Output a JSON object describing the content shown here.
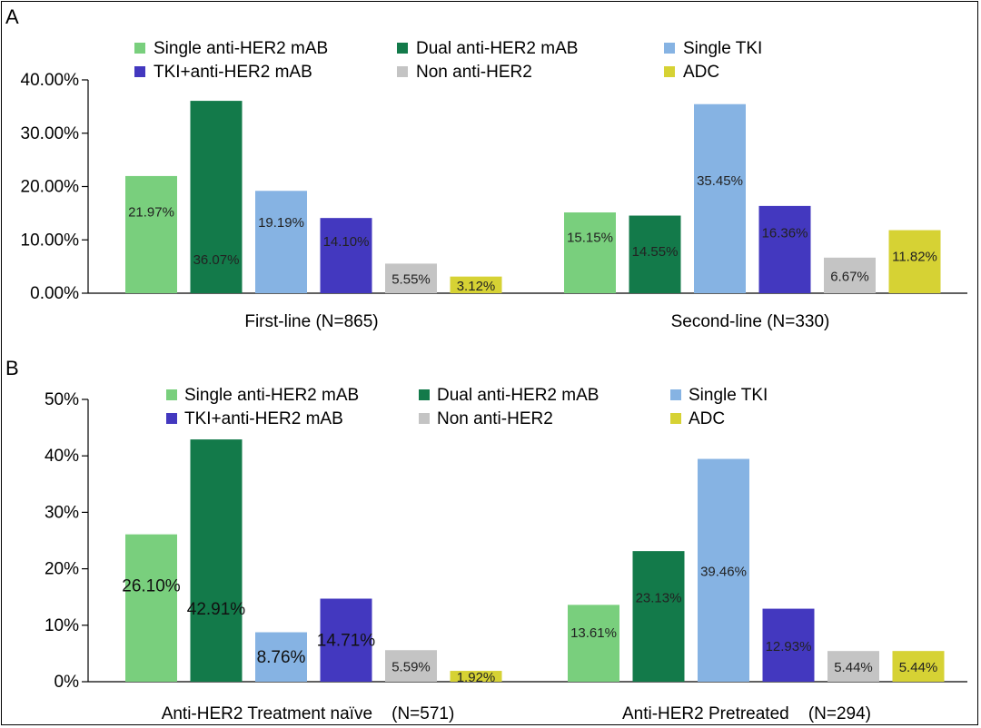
{
  "colors": {
    "Single anti-HER2 mAB": "#79cf7d",
    "Dual anti-HER2 mAB": "#137a4a",
    "Single TKI": "#86b3e3",
    "TKI+anti-HER2 mAB": "#4338bf",
    "Non anti-HER2": "#c4c4c4",
    "ADC": "#d6d234",
    "axis": "#000000"
  },
  "chart_data": [
    {
      "panel": "A",
      "type": "bar",
      "title": "",
      "xlabel": "",
      "ylabel": "",
      "ylim": [
        0,
        40
      ],
      "yticks": [
        "0.00%",
        "10.00%",
        "20.00%",
        "30.00%",
        "40.00%"
      ],
      "categories": [
        "First-line (N=865)",
        "Second-line (N=330)"
      ],
      "legend": [
        "Single anti-HER2 mAB",
        "Dual anti-HER2 mAB",
        "Single TKI",
        "TKI+anti-HER2 mAB",
        "Non anti-HER2",
        "ADC"
      ],
      "series": [
        {
          "name": "Single anti-HER2 mAB",
          "values": [
            21.97,
            15.15
          ],
          "labels": [
            "21.97%",
            "15.15%"
          ]
        },
        {
          "name": "Dual anti-HER2 mAB",
          "values": [
            36.07,
            14.55
          ],
          "labels": [
            "36.07%",
            "14.55%"
          ]
        },
        {
          "name": "Single TKI",
          "values": [
            19.19,
            35.45
          ],
          "labels": [
            "19.19%",
            "35.45%"
          ]
        },
        {
          "name": "TKI+anti-HER2 mAB",
          "values": [
            14.1,
            16.36
          ],
          "labels": [
            "14.10%",
            "16.36%"
          ]
        },
        {
          "name": "Non anti-HER2",
          "values": [
            5.55,
            6.67
          ],
          "labels": [
            "5.55%",
            "6.67%"
          ]
        },
        {
          "name": "ADC",
          "values": [
            3.12,
            11.82
          ],
          "labels": [
            "3.12%",
            "11.82%"
          ]
        }
      ]
    },
    {
      "panel": "B",
      "type": "bar",
      "title": "",
      "xlabel": "",
      "ylabel": "",
      "ylim": [
        0,
        50
      ],
      "yticks": [
        "0%",
        "10%",
        "20%",
        "30%",
        "40%",
        "50%"
      ],
      "categories": [
        "Anti-HER2 Treatment naïve    (N=571)",
        "Anti-HER2 Pretreated    (N=294)"
      ],
      "legend": [
        "Single anti-HER2 mAB",
        "Dual anti-HER2 mAB",
        "Single TKI",
        "TKI+anti-HER2 mAB",
        "Non anti-HER2",
        "ADC"
      ],
      "series": [
        {
          "name": "Single anti-HER2 mAB",
          "values": [
            26.1,
            13.61
          ],
          "labels": [
            "26.10%",
            "13.61%"
          ]
        },
        {
          "name": "Dual anti-HER2 mAB",
          "values": [
            42.91,
            23.13
          ],
          "labels": [
            "42.91%",
            "23.13%"
          ]
        },
        {
          "name": "Single TKI",
          "values": [
            8.76,
            39.46
          ],
          "labels": [
            "8.76%",
            "39.46%"
          ]
        },
        {
          "name": "TKI+anti-HER2 mAB",
          "values": [
            14.71,
            12.93
          ],
          "labels": [
            "14.71%",
            "12.93%"
          ]
        },
        {
          "name": "Non anti-HER2",
          "values": [
            5.59,
            5.44
          ],
          "labels": [
            "5.59%",
            "5.44%"
          ]
        },
        {
          "name": "ADC",
          "values": [
            1.92,
            5.44
          ],
          "labels": [
            "1.92%",
            "5.44%"
          ]
        }
      ]
    }
  ]
}
